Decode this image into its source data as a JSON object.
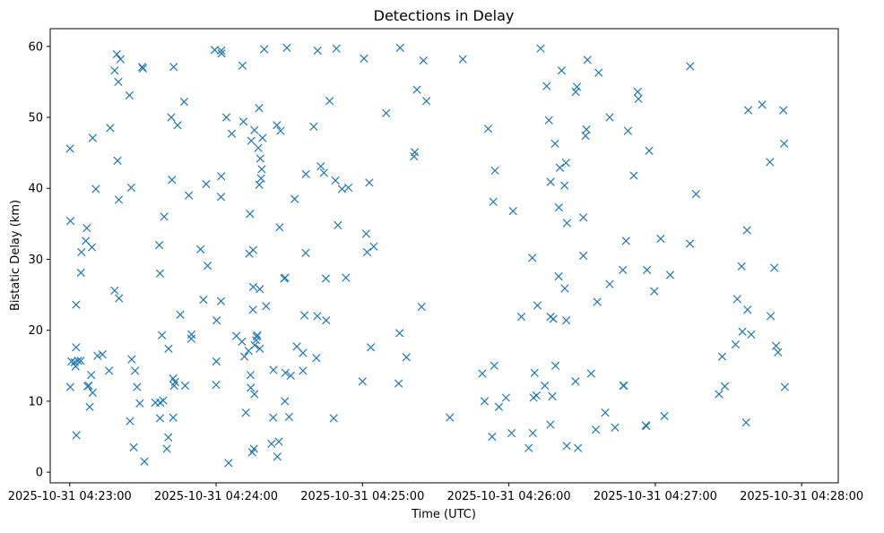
{
  "chart_data": {
    "type": "scatter",
    "title": "Detections in Delay",
    "xlabel": "Time (UTC)",
    "ylabel": "Bistatic Delay (km)",
    "marker": "x",
    "color": "#1f77b4",
    "grid": false,
    "x_unit": "seconds after 2025-10-31 04:23:00",
    "xlim": [
      -8,
      315
    ],
    "ylim": [
      -1.5,
      62.5
    ],
    "xticks": [
      {
        "value": 0,
        "label": "2025-10-31 04:23:00"
      },
      {
        "value": 60,
        "label": "2025-10-31 04:24:00"
      },
      {
        "value": 120,
        "label": "2025-10-31 04:25:00"
      },
      {
        "value": 180,
        "label": "2025-10-31 04:26:00"
      },
      {
        "value": 240,
        "label": "2025-10-31 04:27:00"
      },
      {
        "value": 300,
        "label": "2025-10-31 04:28:00"
      }
    ],
    "yticks": [
      {
        "value": 0,
        "label": "0"
      },
      {
        "value": 10,
        "label": "10"
      },
      {
        "value": 20,
        "label": "20"
      },
      {
        "value": 30,
        "label": "30"
      },
      {
        "value": 40,
        "label": "40"
      },
      {
        "value": 50,
        "label": "50"
      },
      {
        "value": 60,
        "label": "60"
      }
    ],
    "points": [
      [
        0.1,
        45.6
      ],
      [
        0.3,
        35.4
      ],
      [
        0.7,
        15.6
      ],
      [
        0.2,
        12.0
      ],
      [
        2.6,
        23.6
      ],
      [
        2.0,
        15.5
      ],
      [
        2.6,
        17.6
      ],
      [
        2.4,
        14.9
      ],
      [
        2.7,
        5.2
      ],
      [
        3.4,
        15.7
      ],
      [
        4.5,
        15.7
      ],
      [
        4.6,
        28.1
      ],
      [
        4.8,
        31.0
      ],
      [
        6.6,
        32.6
      ],
      [
        7.0,
        34.4
      ],
      [
        7.3,
        12.1
      ],
      [
        7.8,
        12.2
      ],
      [
        8.2,
        9.2
      ],
      [
        8.8,
        13.7
      ],
      [
        9.1,
        31.7
      ],
      [
        9.4,
        47.1
      ],
      [
        9.4,
        11.2
      ],
      [
        10.7,
        39.9
      ],
      [
        11.4,
        16.4
      ],
      [
        13.4,
        16.6
      ],
      [
        16.1,
        14.3
      ],
      [
        16.6,
        48.5
      ],
      [
        18.4,
        25.6
      ],
      [
        18.4,
        56.6
      ],
      [
        19.3,
        58.9
      ],
      [
        19.6,
        43.9
      ],
      [
        19.9,
        55.0
      ],
      [
        20.1,
        38.4
      ],
      [
        20.2,
        24.5
      ],
      [
        20.8,
        58.2
      ],
      [
        24.5,
        53.1
      ],
      [
        24.7,
        7.2
      ],
      [
        25.2,
        40.1
      ],
      [
        25.4,
        15.9
      ],
      [
        26.2,
        3.5
      ],
      [
        26.8,
        14.3
      ],
      [
        27.6,
        12.0
      ],
      [
        28.7,
        9.7
      ],
      [
        29.7,
        57.1
      ],
      [
        30.0,
        56.9
      ],
      [
        30.6,
        1.5
      ],
      [
        35.1,
        9.8
      ],
      [
        36.7,
        32.0
      ],
      [
        37.0,
        7.6
      ],
      [
        37.0,
        28.0
      ],
      [
        37.1,
        9.8
      ],
      [
        37.8,
        19.3
      ],
      [
        38.3,
        10.1
      ],
      [
        38.7,
        36.0
      ],
      [
        39.8,
        3.3
      ],
      [
        40.4,
        4.9
      ],
      [
        40.5,
        17.4
      ],
      [
        41.6,
        50.0
      ],
      [
        41.9,
        41.2
      ],
      [
        42.4,
        7.7
      ],
      [
        42.4,
        13.2
      ],
      [
        42.6,
        57.1
      ],
      [
        42.8,
        12.2
      ],
      [
        43.2,
        12.7
      ],
      [
        44.2,
        48.9
      ],
      [
        45.3,
        22.2
      ],
      [
        46.9,
        52.2
      ],
      [
        47.3,
        12.2
      ],
      [
        48.8,
        39.0
      ],
      [
        49.8,
        18.8
      ],
      [
        49.9,
        19.4
      ],
      [
        53.6,
        31.4
      ],
      [
        54.8,
        24.3
      ],
      [
        55.9,
        40.6
      ],
      [
        56.5,
        29.1
      ],
      [
        59.4,
        59.5
      ],
      [
        60.0,
        12.3
      ],
      [
        60.1,
        15.6
      ],
      [
        60.2,
        21.4
      ],
      [
        62.0,
        24.1
      ],
      [
        62.0,
        38.8
      ],
      [
        62.1,
        41.7
      ],
      [
        62.1,
        59.4
      ],
      [
        62.2,
        59.0
      ],
      [
        64.2,
        50.0
      ],
      [
        65.1,
        1.3
      ],
      [
        66.4,
        47.7
      ],
      [
        68.3,
        19.2
      ],
      [
        70.6,
        18.4
      ],
      [
        70.8,
        57.3
      ],
      [
        71.2,
        49.4
      ],
      [
        71.6,
        16.3
      ],
      [
        72.2,
        8.4
      ],
      [
        73.3,
        17.1
      ],
      [
        73.6,
        30.8
      ],
      [
        73.9,
        36.4
      ],
      [
        74.1,
        13.7
      ],
      [
        74.2,
        11.9
      ],
      [
        74.4,
        46.7
      ],
      [
        74.8,
        2.8
      ],
      [
        75.1,
        22.9
      ],
      [
        75.2,
        31.3
      ],
      [
        75.2,
        26.1
      ],
      [
        75.5,
        3.3
      ],
      [
        75.7,
        11.0
      ],
      [
        75.7,
        48.2
      ],
      [
        75.8,
        17.9
      ],
      [
        76.4,
        18.6
      ],
      [
        76.6,
        19.1
      ],
      [
        76.9,
        19.3
      ],
      [
        77.3,
        45.7
      ],
      [
        77.6,
        51.3
      ],
      [
        77.7,
        40.5
      ],
      [
        77.9,
        25.8
      ],
      [
        77.9,
        17.4
      ],
      [
        78.1,
        44.2
      ],
      [
        78.4,
        41.4
      ],
      [
        78.7,
        42.7
      ],
      [
        79.0,
        47.1
      ],
      [
        79.7,
        59.6
      ],
      [
        80.5,
        23.4
      ],
      [
        82.7,
        4.0
      ],
      [
        83.4,
        7.7
      ],
      [
        83.5,
        14.4
      ],
      [
        84.9,
        48.9
      ],
      [
        85.1,
        2.2
      ],
      [
        85.7,
        4.3
      ],
      [
        86.0,
        34.5
      ],
      [
        86.4,
        48.1
      ],
      [
        87.9,
        27.3
      ],
      [
        88.2,
        10.0
      ],
      [
        88.3,
        27.4
      ],
      [
        88.4,
        14.0
      ],
      [
        89.0,
        59.8
      ],
      [
        89.9,
        7.8
      ],
      [
        90.6,
        13.6
      ],
      [
        92.2,
        38.5
      ],
      [
        93.1,
        17.7
      ],
      [
        95.6,
        16.8
      ],
      [
        95.6,
        14.3
      ],
      [
        96.2,
        22.1
      ],
      [
        96.7,
        30.9
      ],
      [
        96.8,
        42.0
      ],
      [
        100.0,
        48.7
      ],
      [
        101.1,
        16.1
      ],
      [
        101.5,
        22.0
      ],
      [
        101.6,
        59.4
      ],
      [
        102.9,
        43.1
      ],
      [
        104.2,
        42.2
      ],
      [
        105.0,
        27.3
      ],
      [
        105.1,
        21.4
      ],
      [
        106.5,
        52.3
      ],
      [
        108.2,
        7.6
      ],
      [
        108.9,
        41.1
      ],
      [
        109.3,
        59.7
      ],
      [
        109.9,
        34.8
      ],
      [
        111.6,
        39.9
      ],
      [
        113.2,
        27.4
      ],
      [
        114.2,
        40.1
      ],
      [
        120.0,
        12.8
      ],
      [
        120.6,
        58.3
      ],
      [
        121.5,
        33.6
      ],
      [
        121.9,
        31.0
      ],
      [
        122.8,
        40.8
      ],
      [
        123.4,
        17.6
      ],
      [
        124.6,
        31.8
      ],
      [
        129.7,
        50.6
      ],
      [
        134.8,
        12.5
      ],
      [
        135.2,
        19.6
      ],
      [
        135.4,
        59.8
      ],
      [
        138.0,
        16.2
      ],
      [
        141.1,
        44.5
      ],
      [
        141.4,
        45.1
      ],
      [
        142.3,
        53.9
      ],
      [
        144.2,
        23.3
      ],
      [
        145.0,
        58.0
      ],
      [
        146.2,
        52.3
      ],
      [
        155.8,
        7.7
      ],
      [
        161.1,
        58.2
      ],
      [
        169.1,
        13.9
      ],
      [
        170.0,
        10.0
      ],
      [
        171.5,
        48.4
      ],
      [
        173.1,
        5.0
      ],
      [
        173.6,
        38.1
      ],
      [
        174.0,
        15.0
      ],
      [
        174.3,
        42.5
      ],
      [
        175.9,
        9.2
      ],
      [
        178.8,
        10.5
      ],
      [
        181.1,
        5.5
      ],
      [
        181.7,
        36.8
      ],
      [
        185.1,
        21.9
      ],
      [
        188.1,
        3.4
      ],
      [
        189.6,
        30.2
      ],
      [
        189.8,
        5.5
      ],
      [
        190.1,
        10.5
      ],
      [
        190.5,
        14.0
      ],
      [
        191.3,
        10.8
      ],
      [
        191.7,
        23.5
      ],
      [
        193.0,
        59.7
      ],
      [
        194.7,
        12.2
      ],
      [
        195.5,
        54.4
      ],
      [
        196.4,
        49.6
      ],
      [
        197.0,
        6.7
      ],
      [
        197.1,
        40.9
      ],
      [
        197.1,
        21.9
      ],
      [
        197.8,
        10.7
      ],
      [
        198.2,
        21.6
      ],
      [
        198.9,
        46.3
      ],
      [
        199.1,
        15.0
      ],
      [
        200.4,
        27.6
      ],
      [
        200.5,
        37.3
      ],
      [
        200.9,
        42.9
      ],
      [
        201.6,
        56.6
      ],
      [
        202.8,
        40.4
      ],
      [
        202.9,
        25.9
      ],
      [
        203.4,
        43.6
      ],
      [
        203.5,
        21.4
      ],
      [
        203.7,
        3.7
      ],
      [
        203.8,
        35.1
      ],
      [
        207.3,
        12.8
      ],
      [
        207.4,
        53.6
      ],
      [
        207.9,
        54.3
      ],
      [
        208.3,
        3.4
      ],
      [
        210.5,
        35.9
      ],
      [
        210.5,
        30.5
      ],
      [
        211.4,
        47.4
      ],
      [
        211.8,
        48.3
      ],
      [
        212.2,
        58.1
      ],
      [
        213.7,
        13.9
      ],
      [
        215.6,
        6.0
      ],
      [
        216.2,
        24.0
      ],
      [
        216.8,
        56.3
      ],
      [
        219.5,
        8.4
      ],
      [
        221.3,
        50.0
      ],
      [
        221.3,
        26.5
      ],
      [
        223.5,
        6.3
      ],
      [
        226.7,
        28.5
      ],
      [
        226.9,
        12.2
      ],
      [
        227.1,
        12.2
      ],
      [
        228.0,
        32.6
      ],
      [
        228.8,
        48.1
      ],
      [
        231.2,
        41.8
      ],
      [
        232.8,
        53.6
      ],
      [
        233.1,
        52.6
      ],
      [
        236.1,
        6.6
      ],
      [
        236.3,
        6.5
      ],
      [
        236.6,
        28.5
      ],
      [
        237.5,
        45.3
      ],
      [
        239.6,
        25.5
      ],
      [
        242.2,
        32.9
      ],
      [
        243.7,
        7.9
      ],
      [
        246.1,
        27.8
      ],
      [
        254.2,
        32.2
      ],
      [
        254.3,
        57.2
      ],
      [
        256.7,
        39.2
      ],
      [
        266.1,
        11.0
      ],
      [
        267.4,
        16.3
      ],
      [
        268.5,
        12.1
      ],
      [
        272.9,
        18.0
      ],
      [
        273.6,
        24.4
      ],
      [
        275.4,
        29.0
      ],
      [
        275.7,
        19.8
      ],
      [
        277.2,
        7.0
      ],
      [
        277.6,
        34.1
      ],
      [
        277.8,
        22.9
      ],
      [
        278.1,
        51.0
      ],
      [
        279.3,
        19.4
      ],
      [
        283.8,
        51.8
      ],
      [
        287.0,
        43.7
      ],
      [
        287.3,
        22.0
      ],
      [
        288.8,
        28.8
      ],
      [
        289.5,
        17.8
      ],
      [
        290.3,
        16.9
      ],
      [
        292.5,
        51.0
      ],
      [
        292.8,
        46.3
      ],
      [
        293.1,
        12.0
      ]
    ]
  }
}
